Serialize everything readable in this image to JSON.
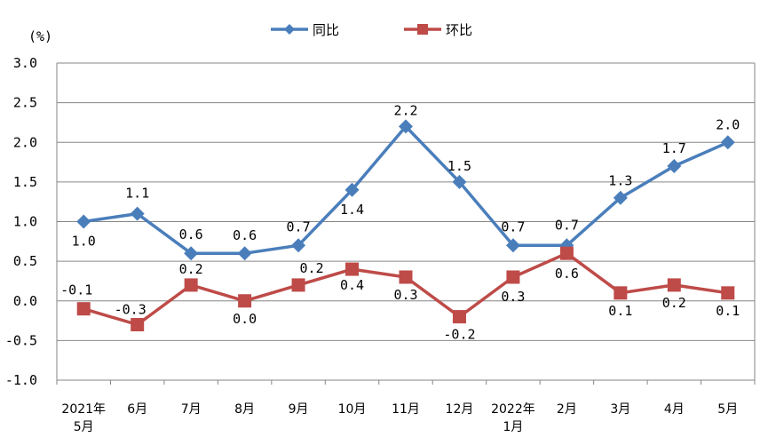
{
  "chart_data": {
    "type": "line",
    "unit": "(%)",
    "categories": [
      [
        "2021年",
        "5月"
      ],
      [
        "6月"
      ],
      [
        "7月"
      ],
      [
        "8月"
      ],
      [
        "9月"
      ],
      [
        "10月"
      ],
      [
        "11月"
      ],
      [
        "12月"
      ],
      [
        "2022年",
        "1月"
      ],
      [
        "2月"
      ],
      [
        "3月"
      ],
      [
        "4月"
      ],
      [
        "5月"
      ]
    ],
    "ylim": [
      -1.0,
      3.0
    ],
    "yticks": [
      "3.0",
      "2.5",
      "2.0",
      "1.5",
      "1.0",
      "0.5",
      "0.0",
      "-0.5",
      "-1.0"
    ],
    "grid": true,
    "legend_position": "top-center",
    "series": [
      {
        "name": "同比",
        "color": "#4a7ebb",
        "marker": "diamond",
        "values": [
          1.0,
          1.1,
          0.6,
          0.6,
          0.7,
          1.4,
          2.2,
          1.5,
          0.7,
          0.7,
          1.3,
          1.7,
          2.0
        ],
        "labels": [
          "1.0",
          "1.1",
          "0.6",
          "0.6",
          "0.7",
          "1.4",
          "2.2",
          "1.5",
          "0.7",
          "0.7",
          "1.3",
          "1.7",
          "2.0"
        ]
      },
      {
        "name": "环比",
        "color": "#be4b48",
        "marker": "square",
        "values": [
          -0.1,
          -0.3,
          0.2,
          0.0,
          0.2,
          0.4,
          0.3,
          -0.2,
          0.3,
          0.6,
          0.1,
          0.2,
          0.1
        ],
        "labels": [
          "-0.1",
          "-0.3",
          "0.2",
          "0.0",
          "0.2",
          "0.4",
          "0.3",
          "-0.2",
          "0.3",
          "0.6",
          "0.1",
          "0.2",
          "0.1"
        ]
      }
    ]
  }
}
